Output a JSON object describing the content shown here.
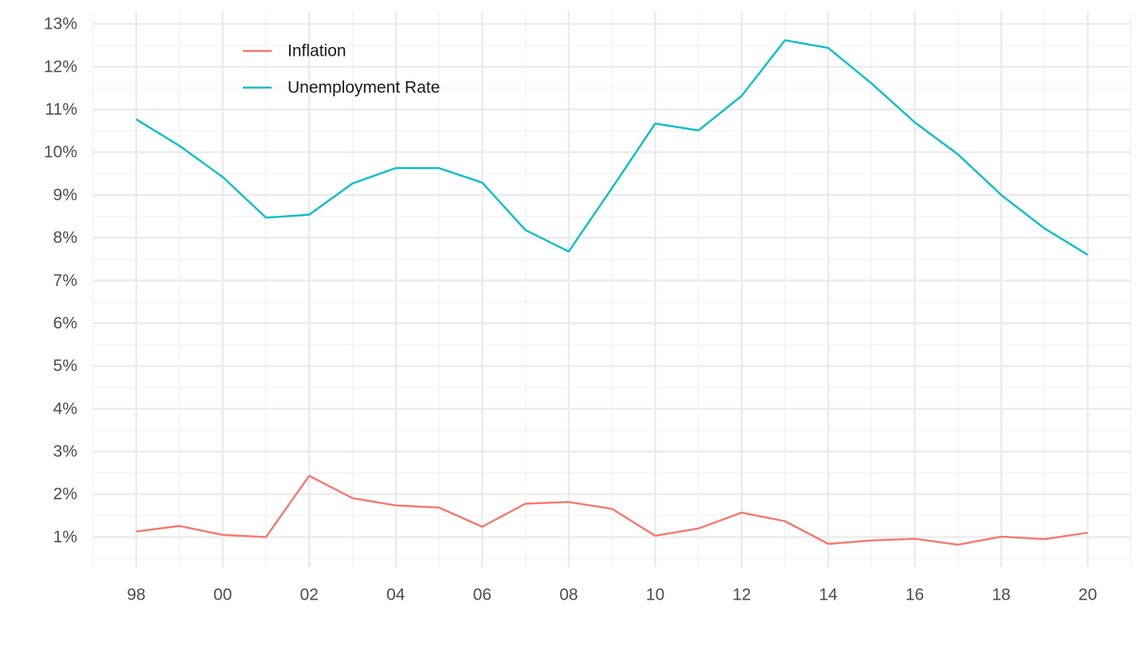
{
  "chart_data": {
    "type": "line",
    "x": [
      "98",
      "99",
      "00",
      "01",
      "02",
      "03",
      "04",
      "05",
      "06",
      "07",
      "08",
      "09",
      "10",
      "11",
      "12",
      "13",
      "14",
      "15",
      "16",
      "17",
      "18",
      "19",
      "20"
    ],
    "x_tick_labels": [
      "98",
      "00",
      "02",
      "04",
      "06",
      "08",
      "10",
      "12",
      "14",
      "16",
      "18",
      "20"
    ],
    "y_tick_labels": [
      "1%",
      "2%",
      "3%",
      "4%",
      "5%",
      "6%",
      "7%",
      "8%",
      "9%",
      "10%",
      "11%",
      "12%",
      "13%"
    ],
    "ylim": [
      0.3,
      13.3
    ],
    "y_unit": "%",
    "grid": true,
    "legend_position": "top-left",
    "series": [
      {
        "name": "Inflation",
        "color": "#F8766D",
        "values": [
          1.13,
          1.26,
          1.05,
          1.0,
          2.43,
          1.91,
          1.74,
          1.69,
          1.24,
          1.78,
          1.82,
          1.66,
          1.03,
          1.2,
          1.57,
          1.37,
          0.84,
          0.92,
          0.96,
          0.82,
          1.01,
          0.95,
          1.1
        ]
      },
      {
        "name": "Unemployment Rate",
        "color": "#00BFC4",
        "values": [
          10.77,
          10.15,
          9.42,
          8.47,
          8.54,
          9.27,
          9.63,
          9.63,
          9.29,
          8.18,
          7.68,
          9.16,
          10.67,
          10.51,
          11.32,
          12.62,
          12.44,
          11.61,
          10.7,
          9.95,
          9.0,
          8.22,
          7.6
        ]
      }
    ],
    "title": "",
    "xlabel": "",
    "ylabel": ""
  }
}
